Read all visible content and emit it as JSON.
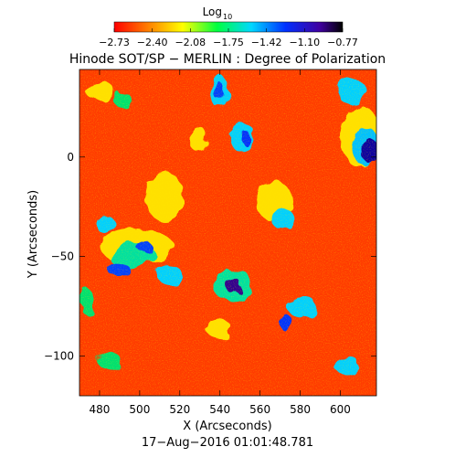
{
  "colorbar": {
    "label_main": "Log",
    "label_sub": "10",
    "ticks": [
      "−2.73",
      "−2.40",
      "−2.08",
      "−1.75",
      "−1.42",
      "−1.10",
      "−0.77"
    ],
    "min": -2.73,
    "max": -0.77,
    "colormap": "rainbow (red to violet/black)"
  },
  "chart_data": {
    "type": "heatmap",
    "title": "Hinode SOT/SP − MERLIN : Degree of Polarization",
    "xlabel": "X (Arcseconds)",
    "ylabel": "Y (Arcseconds)",
    "xlim": [
      470,
      618
    ],
    "ylim": [
      -120,
      44
    ],
    "xticks": [
      480,
      500,
      520,
      540,
      560,
      580,
      600
    ],
    "yticks": [
      0,
      -50,
      -100
    ],
    "xtick_labels": [
      "480",
      "500",
      "520",
      "540",
      "560",
      "580",
      "600"
    ],
    "ytick_labels": [
      "0",
      "−50",
      "−100"
    ],
    "value_scale": "log10",
    "value_range": [
      -2.73,
      -0.77
    ],
    "background_color": "#ff3c00"
  },
  "footer": {
    "timestamp": "17−Aug−2016 01:01:48.781"
  }
}
